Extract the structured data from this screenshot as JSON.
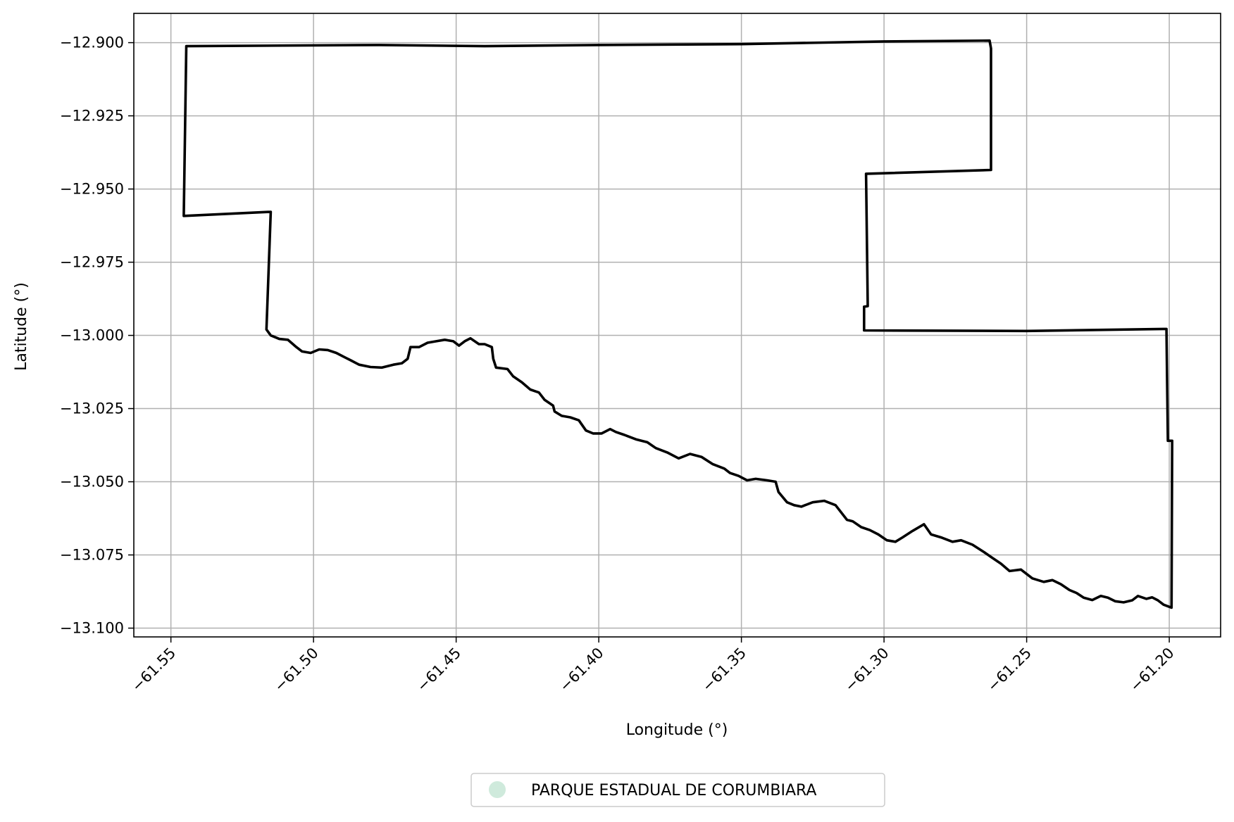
{
  "chart_data": {
    "type": "map",
    "xlabel": "Longitude (°)",
    "ylabel": "Latitude (°)",
    "xlim": [
      -61.563,
      -61.182
    ],
    "ylim": [
      -13.103,
      -12.89
    ],
    "grid": true,
    "x_ticks": [
      -61.55,
      -61.5,
      -61.45,
      -61.4,
      -61.35,
      -61.3,
      -61.25,
      -61.2
    ],
    "x_tick_labels": [
      "−61.55",
      "−61.50",
      "−61.45",
      "−61.40",
      "−61.35",
      "−61.30",
      "−61.25",
      "−61.20"
    ],
    "y_ticks": [
      -12.9,
      -12.925,
      -12.95,
      -12.975,
      -13.0,
      -13.025,
      -13.05,
      -13.075,
      -13.1
    ],
    "y_tick_labels": [
      "−12.900",
      "−12.925",
      "−12.950",
      "−12.975",
      "−13.000",
      "−13.025",
      "−13.050",
      "−13.075",
      "−13.100"
    ],
    "legend": {
      "placement": "bottom-center",
      "entries": [
        {
          "label": "PARQUE ESTADUAL DE CORUMBIARA",
          "color": "#cfeadc"
        }
      ]
    },
    "boundary": {
      "name": "PARQUE ESTADUAL DE CORUMBIARA",
      "stroke": "#000000",
      "coordinates": [
        [
          -61.5446,
          -12.9012
        ],
        [
          -61.477,
          -12.9008
        ],
        [
          -61.44,
          -12.9012
        ],
        [
          -61.4,
          -12.9008
        ],
        [
          -61.35,
          -12.9005
        ],
        [
          -61.3,
          -12.8996
        ],
        [
          -61.263,
          -12.8993
        ],
        [
          -61.2625,
          -12.902
        ],
        [
          -61.2625,
          -12.9435
        ],
        [
          -61.3063,
          -12.9448
        ],
        [
          -61.3057,
          -12.99
        ],
        [
          -61.307,
          -12.9902
        ],
        [
          -61.307,
          -12.9983
        ],
        [
          -61.25,
          -12.9985
        ],
        [
          -61.201,
          -12.9978
        ],
        [
          -61.2005,
          -13.036
        ],
        [
          -61.199,
          -13.036
        ],
        [
          -61.1992,
          -13.093
        ],
        [
          -61.202,
          -13.092
        ],
        [
          -61.204,
          -13.0905
        ],
        [
          -61.206,
          -13.0895
        ],
        [
          -61.208,
          -13.09
        ],
        [
          -61.211,
          -13.089
        ],
        [
          -61.213,
          -13.0905
        ],
        [
          -61.216,
          -13.0912
        ],
        [
          -61.219,
          -13.0908
        ],
        [
          -61.2215,
          -13.0896
        ],
        [
          -61.224,
          -13.089
        ],
        [
          -61.227,
          -13.0904
        ],
        [
          -61.23,
          -13.0896
        ],
        [
          -61.2325,
          -13.088
        ],
        [
          -61.235,
          -13.087
        ],
        [
          -61.238,
          -13.085
        ],
        [
          -61.241,
          -13.0836
        ],
        [
          -61.244,
          -13.0842
        ],
        [
          -61.248,
          -13.083
        ],
        [
          -61.252,
          -13.08
        ],
        [
          -61.256,
          -13.0805
        ],
        [
          -61.259,
          -13.078
        ],
        [
          -61.262,
          -13.076
        ],
        [
          -61.265,
          -13.074
        ],
        [
          -61.269,
          -13.0715
        ],
        [
          -61.273,
          -13.07
        ],
        [
          -61.276,
          -13.0705
        ],
        [
          -61.28,
          -13.069
        ],
        [
          -61.2835,
          -13.068
        ],
        [
          -61.286,
          -13.0645
        ],
        [
          -61.29,
          -13.0668
        ],
        [
          -61.2935,
          -13.069
        ],
        [
          -61.296,
          -13.0705
        ],
        [
          -61.299,
          -13.07
        ],
        [
          -61.302,
          -13.068
        ],
        [
          -61.305,
          -13.0665
        ],
        [
          -61.308,
          -13.0655
        ],
        [
          -61.311,
          -13.0635
        ],
        [
          -61.313,
          -13.063
        ],
        [
          -61.317,
          -13.058
        ],
        [
          -61.321,
          -13.0565
        ],
        [
          -61.325,
          -13.057
        ],
        [
          -61.329,
          -13.0585
        ],
        [
          -61.3315,
          -13.058
        ],
        [
          -61.334,
          -13.057
        ],
        [
          -61.337,
          -13.0535
        ],
        [
          -61.338,
          -13.05
        ],
        [
          -61.341,
          -13.0495
        ],
        [
          -61.345,
          -13.049
        ],
        [
          -61.348,
          -13.0495
        ],
        [
          -61.351,
          -13.048
        ],
        [
          -61.354,
          -13.047
        ],
        [
          -61.356,
          -13.0455
        ],
        [
          -61.36,
          -13.044
        ],
        [
          -61.364,
          -13.0415
        ],
        [
          -61.368,
          -13.0405
        ],
        [
          -61.372,
          -13.042
        ],
        [
          -61.376,
          -13.04
        ],
        [
          -61.38,
          -13.0385
        ],
        [
          -61.383,
          -13.0365
        ],
        [
          -61.387,
          -13.0355
        ],
        [
          -61.391,
          -13.034
        ],
        [
          -61.394,
          -13.033
        ],
        [
          -61.396,
          -13.032
        ],
        [
          -61.399,
          -13.0335
        ],
        [
          -61.402,
          -13.0335
        ],
        [
          -61.4045,
          -13.0325
        ],
        [
          -61.407,
          -13.029
        ],
        [
          -61.41,
          -13.028
        ],
        [
          -61.413,
          -13.0275
        ],
        [
          -61.4155,
          -13.026
        ],
        [
          -61.416,
          -13.024
        ],
        [
          -61.419,
          -13.022
        ],
        [
          -61.421,
          -13.0195
        ],
        [
          -61.424,
          -13.0185
        ],
        [
          -61.427,
          -13.016
        ],
        [
          -61.43,
          -13.014
        ],
        [
          -61.432,
          -13.0115
        ],
        [
          -61.436,
          -13.011
        ],
        [
          -61.437,
          -13.008
        ],
        [
          -61.4375,
          -13.004
        ],
        [
          -61.44,
          -13.003
        ],
        [
          -61.442,
          -13.003
        ],
        [
          -61.445,
          -13.001
        ],
        [
          -61.447,
          -13.002
        ],
        [
          -61.449,
          -13.0035
        ],
        [
          -61.451,
          -13.002
        ],
        [
          -61.454,
          -13.0015
        ],
        [
          -61.457,
          -13.002
        ],
        [
          -61.46,
          -13.0025
        ],
        [
          -61.463,
          -13.004
        ],
        [
          -61.466,
          -13.004
        ],
        [
          -61.467,
          -13.008
        ],
        [
          -61.469,
          -13.0095
        ],
        [
          -61.472,
          -13.01
        ],
        [
          -61.476,
          -13.011
        ],
        [
          -61.48,
          -13.0108
        ],
        [
          -61.484,
          -13.01
        ],
        [
          -61.487,
          -13.0085
        ],
        [
          -61.489,
          -13.0075
        ],
        [
          -61.492,
          -13.006
        ],
        [
          -61.495,
          -13.005
        ],
        [
          -61.498,
          -13.0048
        ],
        [
          -61.501,
          -13.006
        ],
        [
          -61.504,
          -13.0055
        ],
        [
          -61.506,
          -13.004
        ],
        [
          -61.509,
          -13.0015
        ],
        [
          -61.512,
          -13.0012
        ],
        [
          -61.515,
          -13.0
        ],
        [
          -61.5165,
          -12.998
        ],
        [
          -61.515,
          -12.9578
        ],
        [
          -61.5455,
          -12.9592
        ],
        [
          -61.5446,
          -12.9012
        ]
      ]
    }
  }
}
